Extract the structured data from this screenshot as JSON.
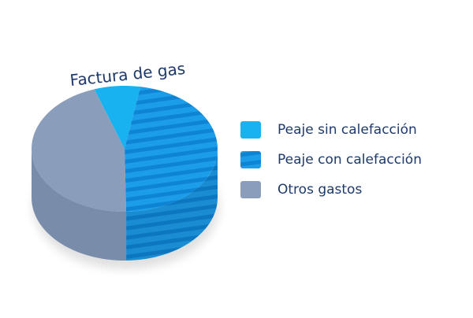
{
  "chart_data": {
    "type": "pie",
    "title": "Factura de gas",
    "categories": [
      "Peaje sin calefacción",
      "Peaje con calefacción",
      "Otros gastos"
    ],
    "values": [
      8,
      47,
      45
    ],
    "colors": [
      "#19b2f0",
      "#1c9de9",
      "#8a9dba"
    ],
    "hatch": [
      false,
      true,
      false
    ],
    "legend": "right"
  }
}
